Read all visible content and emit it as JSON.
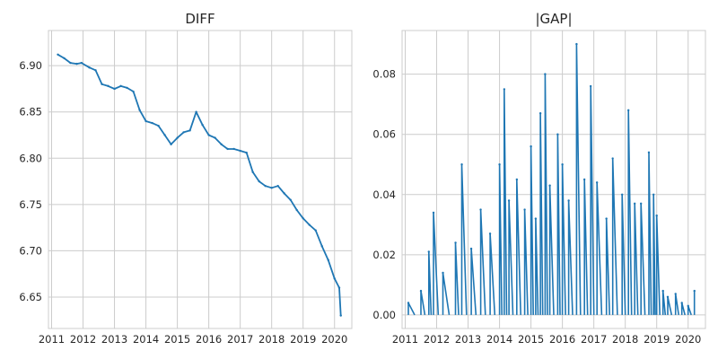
{
  "chart_data": [
    {
      "type": "line",
      "title": "DIFF",
      "xlabel": "",
      "ylabel": "",
      "x_ticks": [
        "2011",
        "2012",
        "2013",
        "2014",
        "2015",
        "2016",
        "2017",
        "2018",
        "2019",
        "2020"
      ],
      "y_ticks": [
        "6.65",
        "6.70",
        "6.75",
        "6.80",
        "6.85",
        "6.90"
      ],
      "xlim": [
        2010.9,
        2020.55
      ],
      "ylim": [
        6.616,
        6.938
      ],
      "grid": true,
      "color": "#1f77b4",
      "series": [
        {
          "x": [
            2011.2,
            2011.4,
            2011.6,
            2011.8,
            2011.95,
            2012.2,
            2012.4,
            2012.6,
            2012.8,
            2013.0,
            2013.2,
            2013.4,
            2013.6,
            2013.8,
            2014.0,
            2014.2,
            2014.4,
            2014.6,
            2014.8,
            2015.0,
            2015.2,
            2015.4,
            2015.6,
            2015.8,
            2016.0,
            2016.2,
            2016.4,
            2016.6,
            2016.8,
            2017.0,
            2017.2,
            2017.4,
            2017.6,
            2017.8,
            2018.0,
            2018.2,
            2018.4,
            2018.6,
            2018.8,
            2019.0,
            2019.2,
            2019.4,
            2019.6,
            2019.8,
            2020.0,
            2020.15,
            2020.2
          ],
          "y": [
            6.912,
            6.908,
            6.903,
            6.902,
            6.903,
            6.898,
            6.895,
            6.88,
            6.878,
            6.875,
            6.878,
            6.876,
            6.872,
            6.852,
            6.84,
            6.838,
            6.835,
            6.825,
            6.815,
            6.822,
            6.828,
            6.83,
            6.85,
            6.836,
            6.825,
            6.822,
            6.815,
            6.81,
            6.81,
            6.808,
            6.806,
            6.785,
            6.775,
            6.77,
            6.768,
            6.77,
            6.762,
            6.755,
            6.744,
            6.735,
            6.728,
            6.722,
            6.705,
            6.69,
            6.67,
            6.66,
            6.63
          ]
        }
      ]
    },
    {
      "type": "line",
      "title": "|GAP|",
      "xlabel": "",
      "ylabel": "",
      "x_ticks": [
        "2011",
        "2012",
        "2013",
        "2014",
        "2015",
        "2016",
        "2017",
        "2018",
        "2019",
        "2020"
      ],
      "y_ticks": [
        "0.00",
        "0.02",
        "0.04",
        "0.06",
        "0.08"
      ],
      "xlim": [
        2010.9,
        2020.55
      ],
      "ylim": [
        -0.0045,
        0.0945
      ],
      "grid": true,
      "color": "#1f77b4",
      "series": [
        {
          "x": [
            2011.1,
            2011.5,
            2011.75,
            2011.9,
            2012.2,
            2012.6,
            2012.8,
            2013.1,
            2013.4,
            2013.7,
            2014.0,
            2014.15,
            2014.3,
            2014.55,
            2014.8,
            2015.0,
            2015.15,
            2015.3,
            2015.45,
            2015.6,
            2015.85,
            2016.0,
            2016.2,
            2016.45,
            2016.7,
            2016.9,
            2017.1,
            2017.4,
            2017.6,
            2017.9,
            2018.1,
            2018.3,
            2018.5,
            2018.75,
            2018.9,
            2019.0,
            2019.2,
            2019.35,
            2019.6,
            2019.8,
            2020.0,
            2020.2
          ],
          "y": [
            0.004,
            0.008,
            0.021,
            0.034,
            0.014,
            0.024,
            0.05,
            0.022,
            0.035,
            0.027,
            0.05,
            0.075,
            0.038,
            0.045,
            0.035,
            0.056,
            0.032,
            0.067,
            0.08,
            0.043,
            0.06,
            0.05,
            0.038,
            0.09,
            0.045,
            0.076,
            0.044,
            0.032,
            0.052,
            0.04,
            0.068,
            0.037,
            0.037,
            0.054,
            0.04,
            0.033,
            0.008,
            0.006,
            0.007,
            0.004,
            0.003,
            0.008
          ]
        }
      ]
    }
  ]
}
